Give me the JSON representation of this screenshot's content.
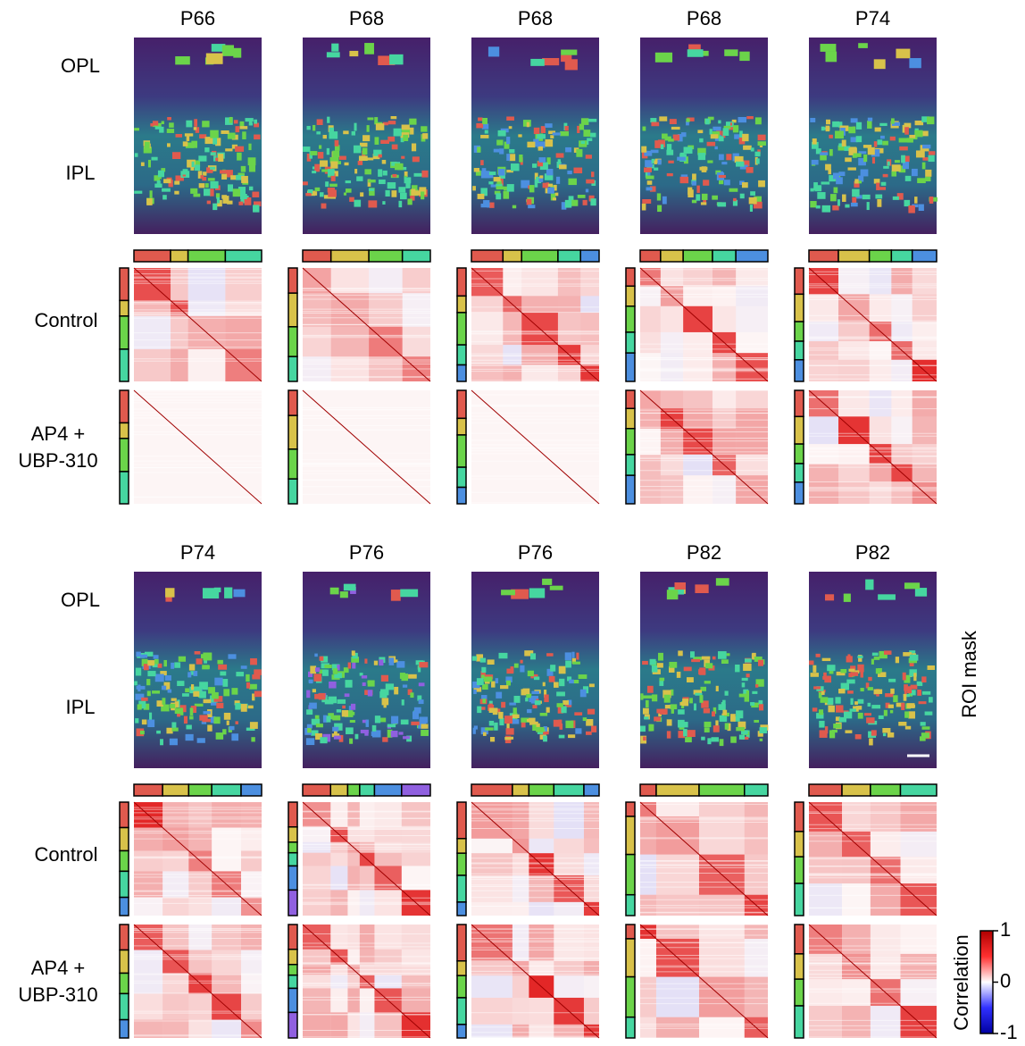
{
  "panels": [
    {
      "columns": [
        "P66",
        "P68",
        "P68",
        "P68",
        "P74"
      ],
      "row_labels": {
        "opl": "OPL",
        "ipl": "IPL",
        "control": "Control",
        "drug": [
          "AP4 +",
          "UBP-310"
        ]
      }
    },
    {
      "columns": [
        "P74",
        "P76",
        "P76",
        "P82",
        "P82"
      ],
      "row_labels": {
        "opl": "OPL",
        "ipl": "IPL",
        "control": "Control",
        "drug": [
          "AP4 +",
          "UBP-310"
        ]
      }
    }
  ],
  "side_label": "ROI mask",
  "colorbar": {
    "title": "Correlation",
    "ticks": [
      1,
      0,
      -1
    ]
  }
}
